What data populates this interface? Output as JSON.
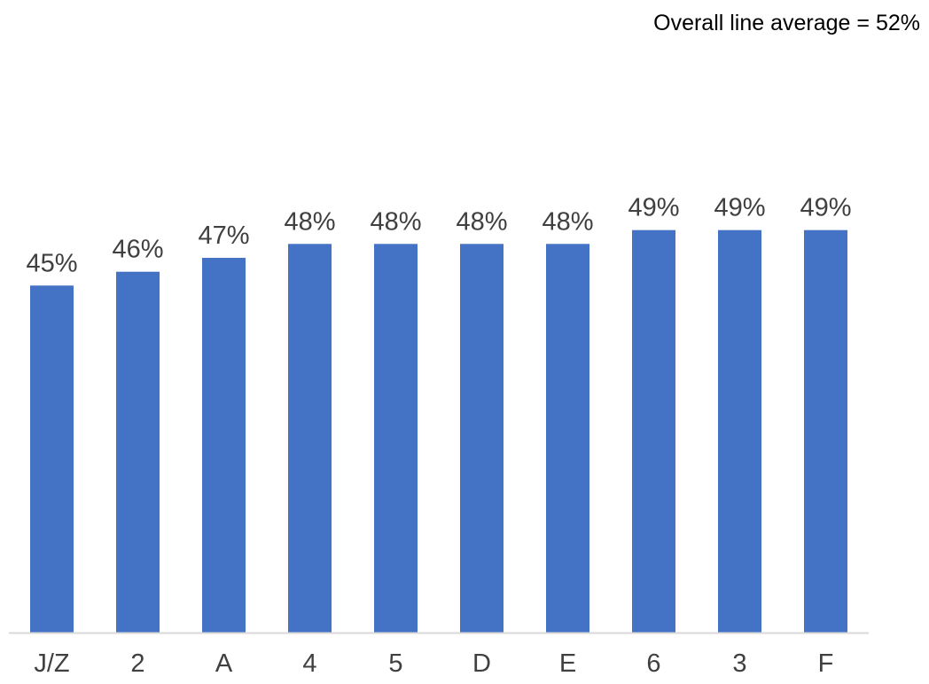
{
  "chart_data": {
    "type": "bar",
    "categories": [
      "J/Z",
      "2",
      "A",
      "4",
      "5",
      "D",
      "E",
      "6",
      "3",
      "F"
    ],
    "values": [
      45,
      46,
      47,
      48,
      48,
      48,
      48,
      49,
      49,
      49
    ],
    "data_labels": [
      "45%",
      "46%",
      "47%",
      "48%",
      "48%",
      "48%",
      "48%",
      "49%",
      "49%",
      "49%"
    ],
    "annotation": "Overall line average = 52%",
    "ylim": [
      20,
      50
    ],
    "grid": false,
    "bar_color": "#4472C4",
    "axis_color": "#D9D9D9",
    "label_color": "#404040"
  }
}
